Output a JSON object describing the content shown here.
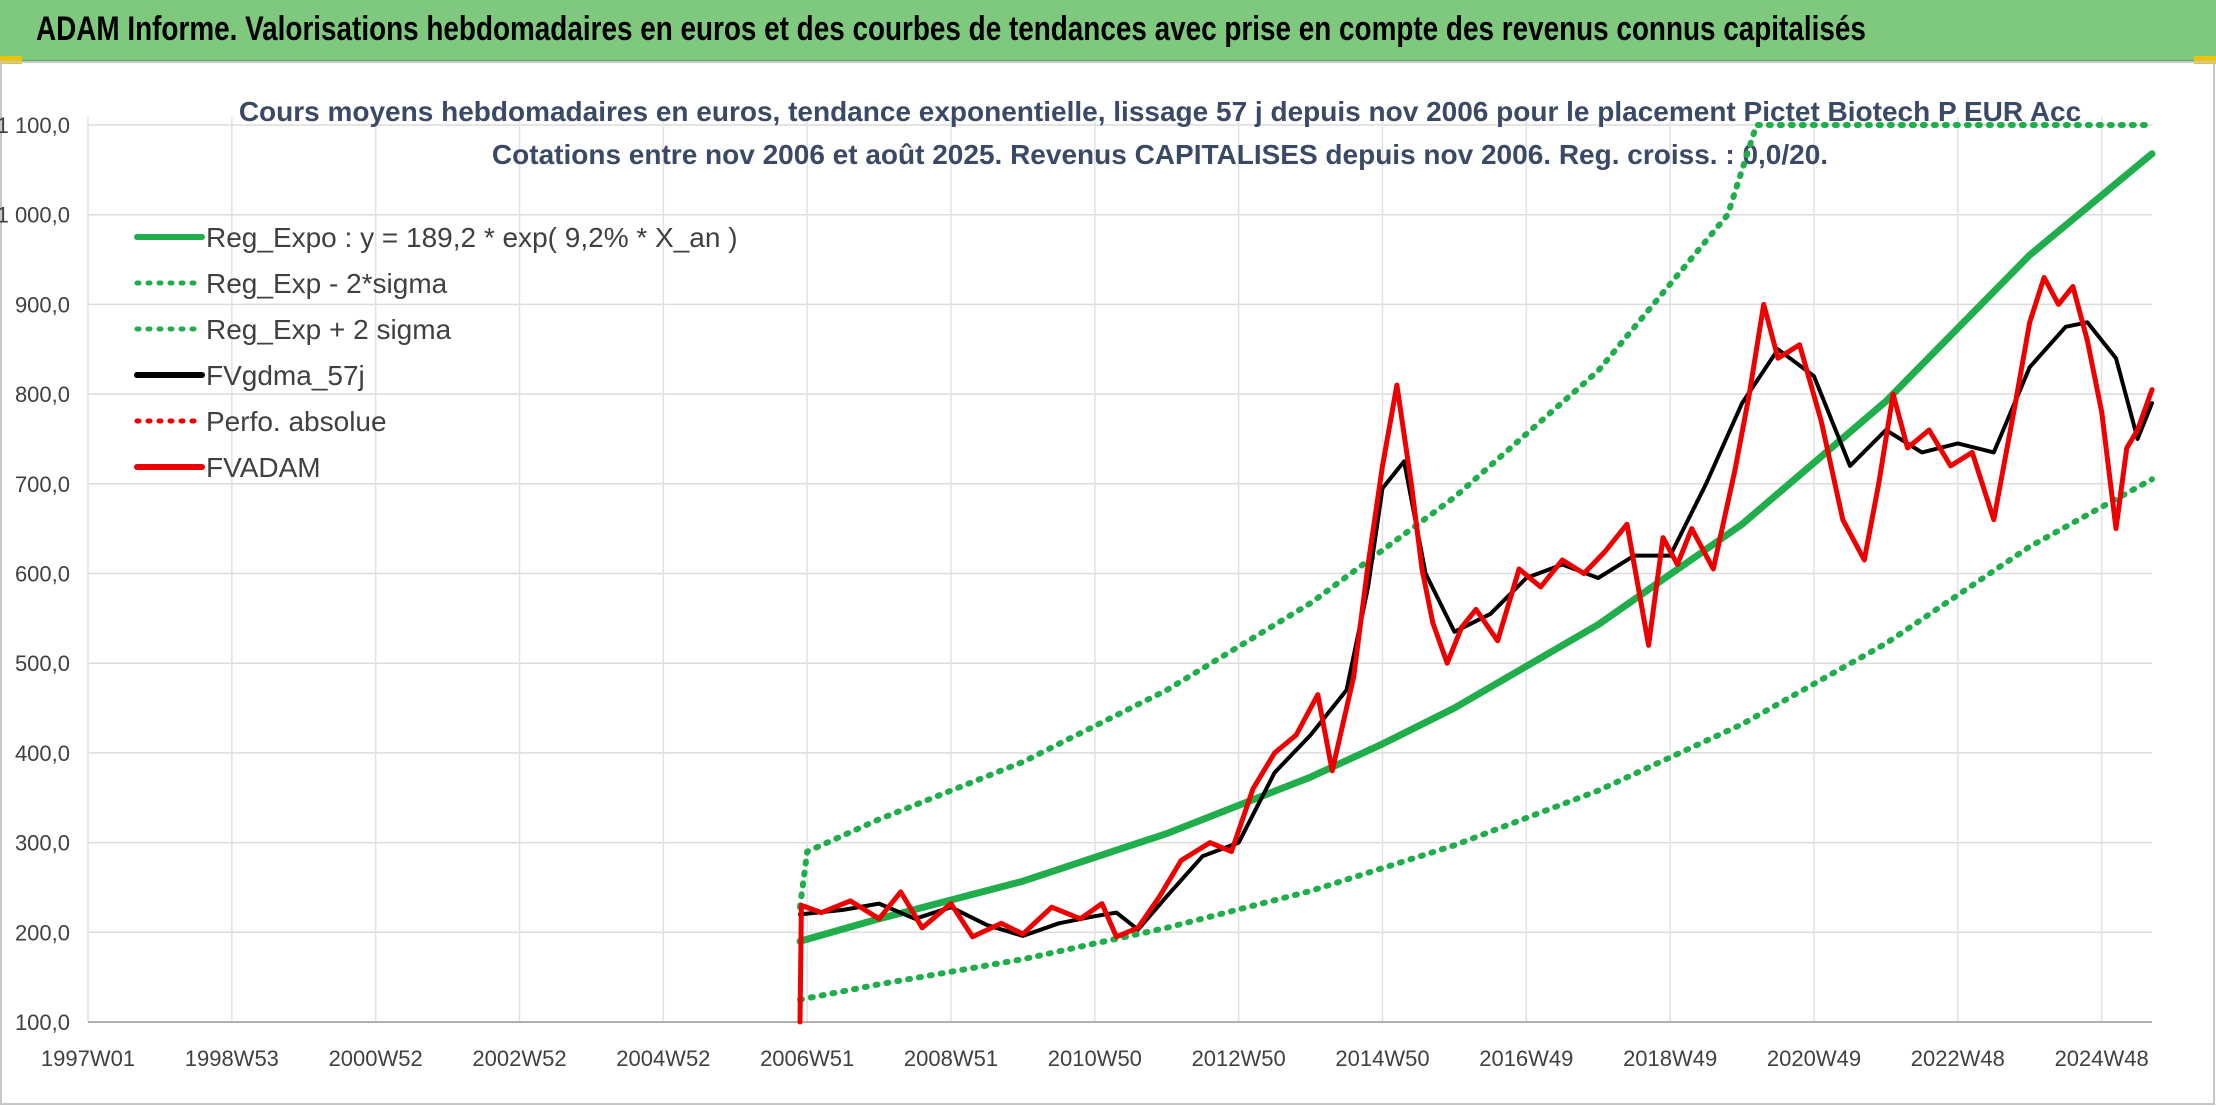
{
  "header": {
    "title": "ADAM Informe. Valorisations hebdomadaires en euros et des courbes de tendances avec prise en compte des revenus connus capitalisés"
  },
  "chart_data": {
    "type": "line",
    "title": "Cours moyens hebdomadaires en euros, tendance exponentielle, lissage 57 j depuis nov 2006 pour le placement Pictet Biotech P EUR Acc",
    "subtitle": "Cotations entre nov 2006 et août 2025. Revenus CAPITALISES depuis nov 2006. Reg. croiss. : 0,0/20.",
    "xlabel": "",
    "ylabel": "",
    "ylim": [
      100,
      1100
    ],
    "xlim": [
      1997.0,
      2025.7
    ],
    "y_ticks": [
      "1 100,0",
      "1 000,0",
      "900,0",
      "800,0",
      "700,0",
      "600,0",
      "500,0",
      "400,0",
      "300,0",
      "200,0",
      "100,0"
    ],
    "y_tick_values": [
      1100,
      1000,
      900,
      800,
      700,
      600,
      500,
      400,
      300,
      200,
      100
    ],
    "x_ticks": [
      "1997W01",
      "1998W53",
      "2000W52",
      "2002W52",
      "2004W52",
      "2006W51",
      "2008W51",
      "2010W50",
      "2012W50",
      "2014W50",
      "2016W49",
      "2018W49",
      "2020W49",
      "2022W48",
      "2024W48"
    ],
    "x_tick_values": [
      1997.0,
      1999.0,
      2001.0,
      2003.0,
      2005.0,
      2007.0,
      2009.0,
      2011.0,
      2013.0,
      2015.0,
      2017.0,
      2019.0,
      2021.0,
      2023.0,
      2025.0
    ],
    "grid": true,
    "legend_position": "top-left",
    "colors": {
      "trend": "#1fae4b",
      "smooth": "#000000",
      "price": "#ee0000",
      "title": "#3a4a66"
    },
    "legend": [
      {
        "label": "Reg_Expo : y = 189,2 * exp( 9,2% *  X_an )",
        "style": "solid",
        "color": "#1fae4b"
      },
      {
        "label": "Reg_Exp - 2*sigma",
        "style": "dotted",
        "color": "#1fae4b"
      },
      {
        "label": "Reg_Exp + 2 sigma",
        "style": "dotted",
        "color": "#1fae4b"
      },
      {
        "label": "FVgdma_57j",
        "style": "solid",
        "color": "#000000"
      },
      {
        "label": "Perfo. absolue",
        "style": "dotted",
        "color": "#ee0000"
      },
      {
        "label": "FVADAM",
        "style": "solid",
        "color": "#ee0000"
      }
    ],
    "series": [
      {
        "name": "Reg_Expo : y = 189,2 * exp( 9,2% *  X_an )",
        "x": [
          2006.9,
          2008,
          2010,
          2012,
          2014,
          2015,
          2016,
          2018,
          2020,
          2022,
          2024,
          2025.7
        ],
        "y": [
          190,
          215,
          257,
          310,
          373,
          410,
          450,
          543,
          655,
          792,
          955,
          1068
        ]
      },
      {
        "name": "Reg_Exp - 2*sigma",
        "x": [
          2006.9,
          2008,
          2010,
          2012,
          2014,
          2016,
          2018,
          2020,
          2022,
          2024,
          2025.7
        ],
        "y": [
          125,
          142,
          170,
          205,
          246,
          297,
          358,
          432,
          522,
          630,
          705
        ]
      },
      {
        "name": "Reg_Exp + 2 sigma",
        "x": [
          2006.9,
          2007,
          2008,
          2010,
          2012,
          2014,
          2016,
          2018,
          2019.8,
          2020.2,
          2024,
          2025.7
        ],
        "y": [
          228,
          290,
          326,
          390,
          470,
          567,
          685,
          826,
          1000,
          1100,
          1100,
          1100
        ]
      },
      {
        "name": "FVgdma_57j",
        "x": [
          2006.9,
          2007.5,
          2008,
          2008.5,
          2009,
          2009.5,
          2010,
          2010.5,
          2011,
          2011.3,
          2011.6,
          2012,
          2012.5,
          2013,
          2013.5,
          2014,
          2014.5,
          2014.8,
          2015,
          2015.3,
          2015.6,
          2016,
          2016.5,
          2017,
          2017.5,
          2018,
          2018.5,
          2019,
          2019.5,
          2020,
          2020.5,
          2021,
          2021.5,
          2022,
          2022.5,
          2023,
          2023.5,
          2024,
          2024.5,
          2024.8,
          2025.2,
          2025.5,
          2025.7
        ],
        "y": [
          220,
          225,
          232,
          215,
          228,
          208,
          196,
          210,
          218,
          222,
          203,
          240,
          285,
          300,
          378,
          420,
          470,
          585,
          695,
          725,
          600,
          535,
          555,
          595,
          610,
          595,
          620,
          620,
          700,
          790,
          850,
          820,
          720,
          760,
          735,
          745,
          735,
          830,
          875,
          880,
          840,
          750,
          790
        ]
      },
      {
        "name": "FVADAM",
        "x": [
          2006.9,
          2006.92,
          2007.2,
          2007.6,
          2008,
          2008.3,
          2008.6,
          2009,
          2009.3,
          2009.7,
          2010,
          2010.4,
          2010.8,
          2011.1,
          2011.3,
          2011.6,
          2011.9,
          2012.2,
          2012.6,
          2012.9,
          2013.2,
          2013.5,
          2013.8,
          2014.1,
          2014.3,
          2014.6,
          2014.8,
          2015,
          2015.2,
          2015.4,
          2015.55,
          2015.7,
          2015.9,
          2016.1,
          2016.3,
          2016.6,
          2016.9,
          2017.2,
          2017.5,
          2017.8,
          2018.1,
          2018.4,
          2018.7,
          2018.9,
          2019.1,
          2019.3,
          2019.6,
          2019.9,
          2020.1,
          2020.3,
          2020.5,
          2020.8,
          2021.1,
          2021.4,
          2021.7,
          2021.9,
          2022.1,
          2022.3,
          2022.6,
          2022.9,
          2023.2,
          2023.5,
          2023.8,
          2024.0,
          2024.2,
          2024.4,
          2024.6,
          2024.8,
          2025.0,
          2025.2,
          2025.35,
          2025.5,
          2025.7
        ],
        "y": [
          100,
          230,
          222,
          235,
          215,
          245,
          205,
          232,
          195,
          210,
          198,
          228,
          215,
          232,
          195,
          205,
          240,
          280,
          300,
          290,
          360,
          400,
          420,
          465,
          380,
          485,
          610,
          720,
          810,
          700,
          605,
          545,
          500,
          540,
          560,
          525,
          605,
          585,
          615,
          600,
          625,
          655,
          520,
          640,
          610,
          650,
          605,
          715,
          800,
          900,
          840,
          855,
          770,
          660,
          615,
          700,
          800,
          740,
          760,
          720,
          735,
          660,
          790,
          880,
          930,
          900,
          920,
          860,
          780,
          650,
          740,
          760,
          805
        ]
      }
    ]
  }
}
